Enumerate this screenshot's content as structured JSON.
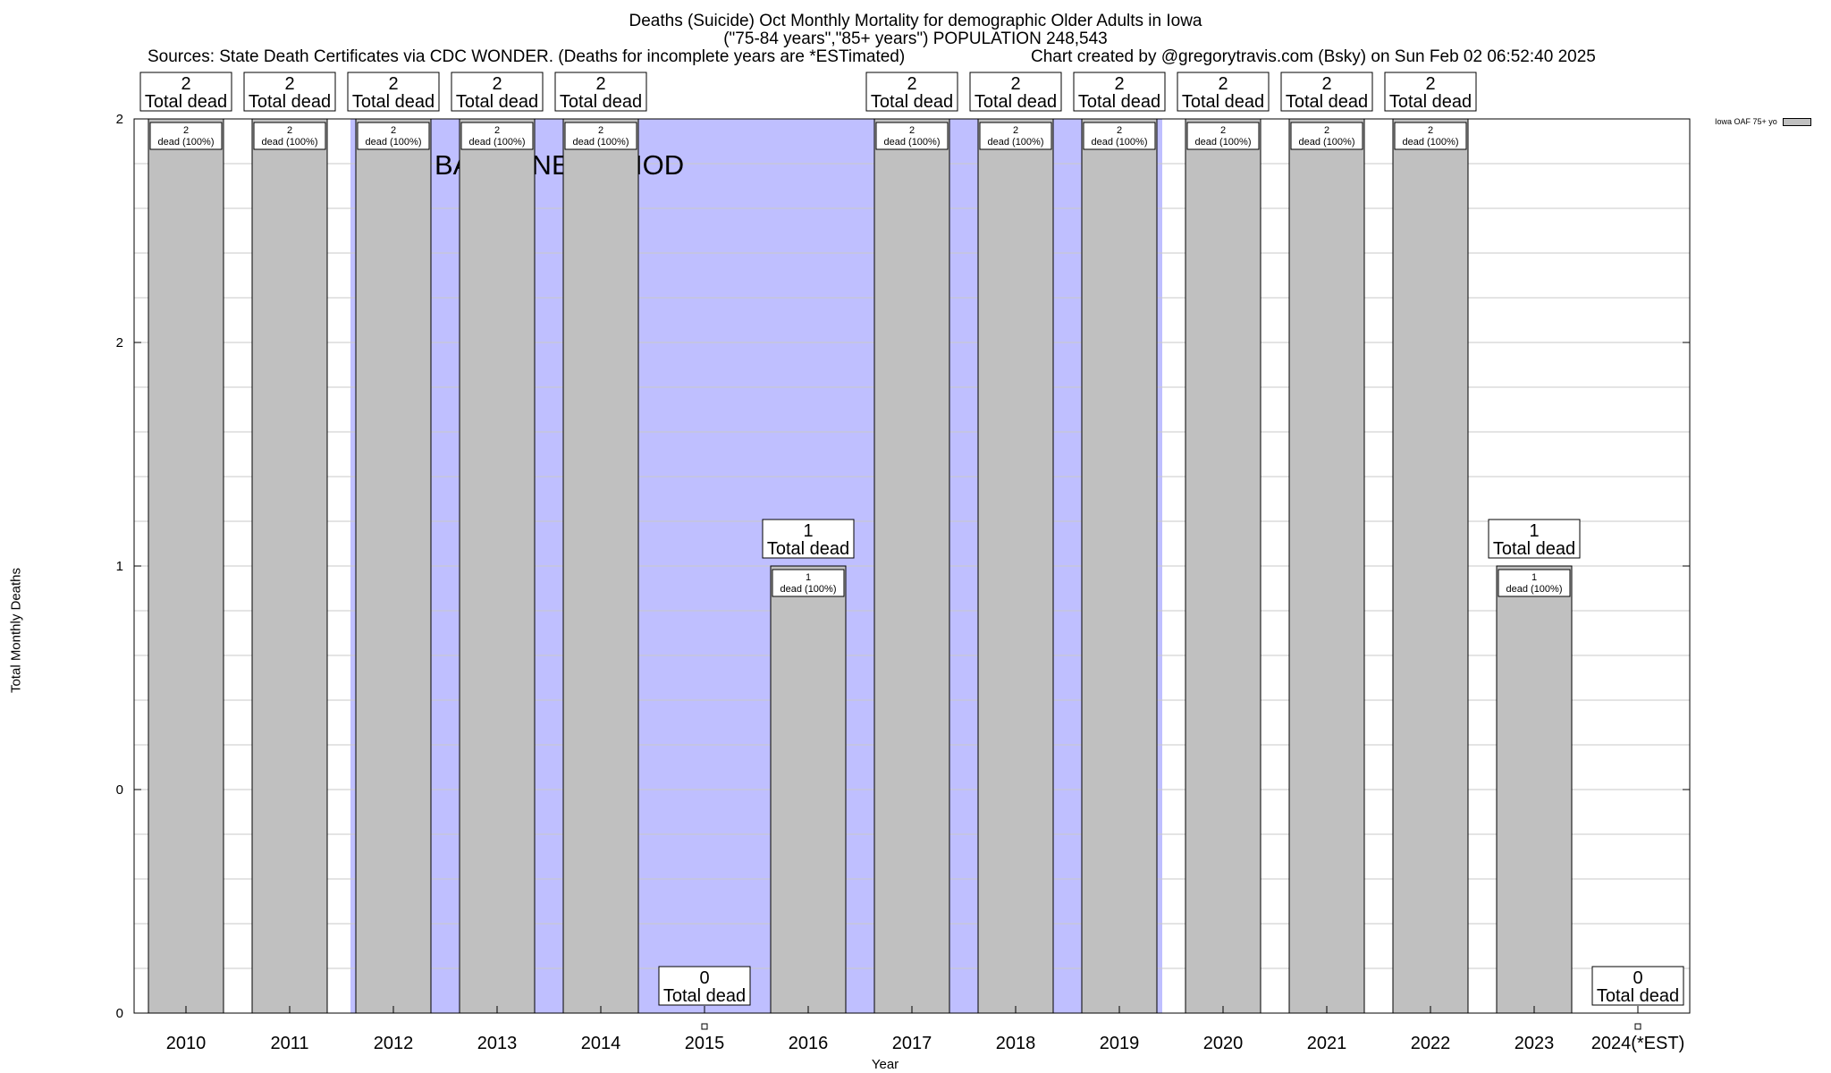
{
  "header": {
    "title_line1": "Deaths (Suicide) Oct Monthly Mortality for demographic Older Adults in Iowa",
    "title_line2": "(\"75-84 years\",\"85+ years\") POPULATION 248,543",
    "sources": "Sources: State Death Certificates via CDC WONDER. (Deaths for incomplete years are *ESTimated)",
    "credit": "Chart created by @gregorytravis.com (Bsky) on Sun Feb 02 06:52:40 2025"
  },
  "chart_data": {
    "type": "bar",
    "title": "Deaths (Suicide) Oct Monthly Mortality for demographic Older Adults in Iowa",
    "xlabel": "Year",
    "ylabel": "Total Monthly Deaths",
    "categories": [
      "2010",
      "2011",
      "2012",
      "2013",
      "2014",
      "2015",
      "2016",
      "2017",
      "2018",
      "2019",
      "2020",
      "2021",
      "2022",
      "2023",
      "2024(*EST)"
    ],
    "series": [
      {
        "name": "Iowa OAF 75+ yo",
        "values": [
          2,
          2,
          2,
          2,
          2,
          0,
          1,
          2,
          2,
          2,
          2,
          2,
          2,
          1,
          0
        ]
      }
    ],
    "ytick_labels": [
      "0",
      "0",
      "1",
      "2",
      "2"
    ],
    "ytick_values": [
      0,
      0.5,
      1,
      1.5,
      2
    ],
    "ylim": [
      0,
      2
    ],
    "grid": true,
    "legend_position": "top-right",
    "top_labels": {
      "line1": [
        "2",
        "2",
        "2",
        "2",
        "2",
        "0",
        "1",
        "2",
        "2",
        "2",
        "2",
        "2",
        "2",
        "1",
        "0"
      ],
      "line2": "Total dead"
    },
    "inner_labels": {
      "line1": [
        "2",
        "2",
        "2",
        "2",
        "2",
        "",
        "1",
        "2",
        "2",
        "2",
        "2",
        "2",
        "2",
        "1",
        ""
      ],
      "line2": [
        "dead (100%)",
        "dead (100%)",
        "dead (100%)",
        "dead (100%)",
        "dead (100%)",
        "",
        "dead (100%)",
        "dead (100%)",
        "dead (100%)",
        "dead (100%)",
        "dead (100%)",
        "dead (100%)",
        "dead (100%)",
        "dead (100%)",
        ""
      ]
    },
    "baseline_annotation": "BASELINE PERIOD",
    "baseline_years": [
      "2012",
      "2013",
      "2014",
      "2015",
      "2016",
      "2017",
      "2018",
      "2019"
    ],
    "colors": {
      "bar": "#c0c0c0",
      "baseline": "#bfbfff",
      "grid": "#c8c8c8"
    }
  }
}
